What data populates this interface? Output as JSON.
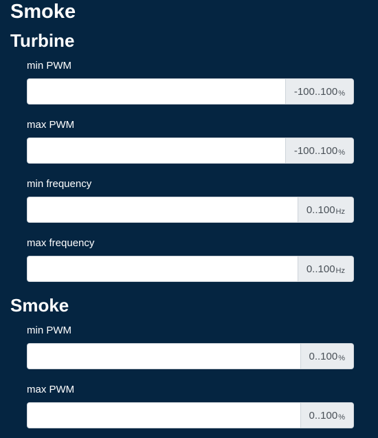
{
  "page": {
    "title": "Smoke"
  },
  "sections": [
    {
      "title": "Turbine",
      "fields": [
        {
          "label": "min PWM",
          "value": "",
          "range": "-100..100",
          "unit": "%"
        },
        {
          "label": "max PWM",
          "value": "",
          "range": "-100..100",
          "unit": "%"
        },
        {
          "label": "min frequency",
          "value": "",
          "range": "0..100",
          "unit": "Hz"
        },
        {
          "label": "max frequency",
          "value": "",
          "range": "0..100",
          "unit": "Hz"
        }
      ]
    },
    {
      "title": "Smoke",
      "fields": [
        {
          "label": "min PWM",
          "value": "",
          "range": "0..100",
          "unit": "%"
        },
        {
          "label": "max PWM",
          "value": "",
          "range": "0..100",
          "unit": "%"
        }
      ]
    }
  ],
  "colors": {
    "background": "#052541",
    "input_background": "#ffffff",
    "addon_background": "#e9ecef",
    "text": "#ffffff"
  }
}
